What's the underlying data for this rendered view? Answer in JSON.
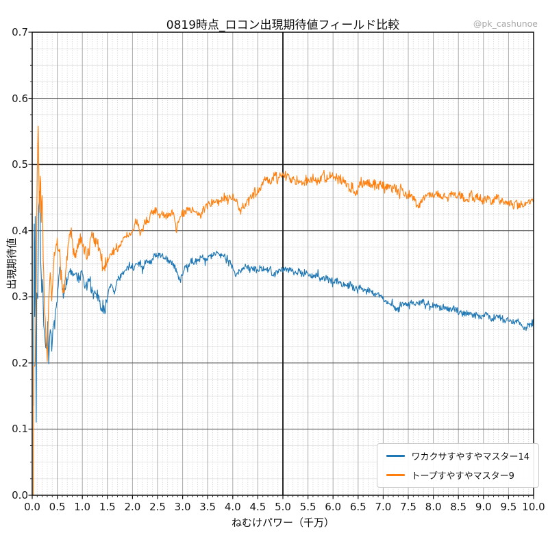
{
  "watermark": "@pk_cashunoe",
  "chart_data": {
    "type": "line",
    "title": "0819時点_ロコン出現期待値フィールド比較",
    "xlabel": "ねむけパワー（千万）",
    "ylabel": "出現期待値",
    "xlim": [
      0,
      10
    ],
    "ylim": [
      0,
      0.7
    ],
    "x_ticks": {
      "values": [
        0,
        0.5,
        1,
        1.5,
        2,
        2.5,
        3,
        3.5,
        4,
        4.5,
        5,
        5.5,
        6,
        6.5,
        7,
        7.5,
        8,
        8.5,
        9,
        9.5,
        10
      ],
      "labels": [
        "0.0",
        "0.5",
        "1.0",
        "1.5",
        "2.0",
        "2.5",
        "3.0",
        "3.5",
        "4.0",
        "4.5",
        "5.0",
        "5.5",
        "6.0",
        "6.5",
        "7.0",
        "7.5",
        "8.0",
        "8.5",
        "9.0",
        "9.5",
        "10.0"
      ]
    },
    "y_ticks": {
      "values": [
        0,
        0.1,
        0.2,
        0.3,
        0.4,
        0.5,
        0.6,
        0.7
      ],
      "labels": [
        "0.0",
        "0.1",
        "0.2",
        "0.3",
        "0.4",
        "0.5",
        "0.6",
        "0.7"
      ]
    },
    "grid": {
      "on": true,
      "x_major": 0.5,
      "x_minor": 0.1,
      "y_major": 0.1,
      "y_minor": 0.025
    },
    "reference_lines": [
      {
        "axis": "y",
        "value": 0.5
      },
      {
        "axis": "x",
        "value": 5.0
      }
    ],
    "legend": {
      "position": "lower right",
      "entries": [
        {
          "label": "ワカクサすやすやマスター14",
          "color": "#1f77b4"
        },
        {
          "label": "トープすやすやマスター9",
          "color": "#ff7f0e"
        }
      ]
    },
    "series": [
      {
        "name": "ワカクサすやすやマスター14",
        "color": "#1f77b4",
        "noise": 0.0055,
        "seed": 7,
        "points": [
          [
            0.03,
            0.135
          ],
          [
            0.04,
            0.41
          ],
          [
            0.05,
            0.27
          ],
          [
            0.06,
            0.43
          ],
          [
            0.08,
            0.12
          ],
          [
            0.09,
            0.31
          ],
          [
            0.11,
            0.3
          ],
          [
            0.13,
            0.44
          ],
          [
            0.15,
            0.455
          ],
          [
            0.17,
            0.35
          ],
          [
            0.19,
            0.3
          ],
          [
            0.21,
            0.33
          ],
          [
            0.23,
            0.26
          ],
          [
            0.26,
            0.235
          ],
          [
            0.29,
            0.225
          ],
          [
            0.31,
            0.26
          ],
          [
            0.33,
            0.2
          ],
          [
            0.36,
            0.245
          ],
          [
            0.39,
            0.22
          ],
          [
            0.42,
            0.25
          ],
          [
            0.45,
            0.27
          ],
          [
            0.48,
            0.285
          ],
          [
            0.52,
            0.31
          ],
          [
            0.55,
            0.345
          ],
          [
            0.58,
            0.325
          ],
          [
            0.62,
            0.3
          ],
          [
            0.66,
            0.318
          ],
          [
            0.7,
            0.33
          ],
          [
            0.75,
            0.34
          ],
          [
            0.8,
            0.332
          ],
          [
            0.85,
            0.338
          ],
          [
            0.9,
            0.325
          ],
          [
            0.95,
            0.332
          ],
          [
            1.0,
            0.337
          ],
          [
            1.05,
            0.318
          ],
          [
            1.1,
            0.315
          ],
          [
            1.15,
            0.322
          ],
          [
            1.2,
            0.312
          ],
          [
            1.25,
            0.302
          ],
          [
            1.3,
            0.297
          ],
          [
            1.38,
            0.288
          ],
          [
            1.45,
            0.282
          ],
          [
            1.52,
            0.305
          ],
          [
            1.58,
            0.318
          ],
          [
            1.64,
            0.303
          ],
          [
            1.72,
            0.33
          ],
          [
            1.8,
            0.338
          ],
          [
            1.9,
            0.342
          ],
          [
            2.0,
            0.345
          ],
          [
            2.1,
            0.352
          ],
          [
            2.2,
            0.347
          ],
          [
            2.3,
            0.352
          ],
          [
            2.4,
            0.358
          ],
          [
            2.5,
            0.36
          ],
          [
            2.6,
            0.365
          ],
          [
            2.7,
            0.358
          ],
          [
            2.8,
            0.352
          ],
          [
            2.9,
            0.332
          ],
          [
            2.95,
            0.322
          ],
          [
            3.05,
            0.345
          ],
          [
            3.15,
            0.35
          ],
          [
            3.25,
            0.355
          ],
          [
            3.35,
            0.36
          ],
          [
            3.45,
            0.358
          ],
          [
            3.55,
            0.362
          ],
          [
            3.65,
            0.365
          ],
          [
            3.75,
            0.362
          ],
          [
            3.85,
            0.358
          ],
          [
            3.95,
            0.348
          ],
          [
            4.05,
            0.333
          ],
          [
            4.15,
            0.34
          ],
          [
            4.25,
            0.345
          ],
          [
            4.4,
            0.34
          ],
          [
            4.55,
            0.342
          ],
          [
            4.7,
            0.34
          ],
          [
            4.85,
            0.337
          ],
          [
            5.0,
            0.34
          ],
          [
            5.15,
            0.34
          ],
          [
            5.3,
            0.337
          ],
          [
            5.45,
            0.336
          ],
          [
            5.6,
            0.333
          ],
          [
            5.75,
            0.33
          ],
          [
            5.9,
            0.325
          ],
          [
            6.05,
            0.322
          ],
          [
            6.2,
            0.318
          ],
          [
            6.35,
            0.316
          ],
          [
            6.5,
            0.314
          ],
          [
            6.65,
            0.31
          ],
          [
            6.8,
            0.304
          ],
          [
            6.95,
            0.3
          ],
          [
            7.1,
            0.29
          ],
          [
            7.25,
            0.282
          ],
          [
            7.4,
            0.287
          ],
          [
            7.55,
            0.292
          ],
          [
            7.7,
            0.29
          ],
          [
            7.85,
            0.289
          ],
          [
            8.0,
            0.288
          ],
          [
            8.15,
            0.286
          ],
          [
            8.3,
            0.283
          ],
          [
            8.45,
            0.28
          ],
          [
            8.6,
            0.278
          ],
          [
            8.75,
            0.275
          ],
          [
            8.9,
            0.272
          ],
          [
            9.05,
            0.27
          ],
          [
            9.2,
            0.268
          ],
          [
            9.35,
            0.266
          ],
          [
            9.5,
            0.264
          ],
          [
            9.65,
            0.262
          ],
          [
            9.8,
            0.256
          ],
          [
            9.9,
            0.253
          ],
          [
            10.0,
            0.26
          ]
        ]
      },
      {
        "name": "トープすやすやマスター9",
        "color": "#ff7f0e",
        "noise": 0.007,
        "seed": 13,
        "points": [
          [
            0.02,
            0.0
          ],
          [
            0.03,
            0.195
          ],
          [
            0.06,
            0.195
          ],
          [
            0.08,
            0.33
          ],
          [
            0.1,
            0.5
          ],
          [
            0.12,
            0.565
          ],
          [
            0.135,
            0.47
          ],
          [
            0.15,
            0.44
          ],
          [
            0.165,
            0.5
          ],
          [
            0.18,
            0.42
          ],
          [
            0.2,
            0.46
          ],
          [
            0.22,
            0.36
          ],
          [
            0.24,
            0.3
          ],
          [
            0.27,
            0.245
          ],
          [
            0.3,
            0.21
          ],
          [
            0.33,
            0.285
          ],
          [
            0.36,
            0.33
          ],
          [
            0.39,
            0.3
          ],
          [
            0.42,
            0.345
          ],
          [
            0.46,
            0.365
          ],
          [
            0.5,
            0.38
          ],
          [
            0.54,
            0.358
          ],
          [
            0.58,
            0.33
          ],
          [
            0.62,
            0.292
          ],
          [
            0.66,
            0.32
          ],
          [
            0.7,
            0.358
          ],
          [
            0.74,
            0.383
          ],
          [
            0.78,
            0.398
          ],
          [
            0.82,
            0.375
          ],
          [
            0.86,
            0.362
          ],
          [
            0.9,
            0.375
          ],
          [
            0.95,
            0.38
          ],
          [
            1.0,
            0.385
          ],
          [
            1.05,
            0.372
          ],
          [
            1.1,
            0.365
          ],
          [
            1.15,
            0.375
          ],
          [
            1.2,
            0.39
          ],
          [
            1.25,
            0.385
          ],
          [
            1.3,
            0.375
          ],
          [
            1.36,
            0.36
          ],
          [
            1.42,
            0.35
          ],
          [
            1.48,
            0.347
          ],
          [
            1.54,
            0.362
          ],
          [
            1.6,
            0.368
          ],
          [
            1.7,
            0.374
          ],
          [
            1.8,
            0.382
          ],
          [
            1.9,
            0.39
          ],
          [
            2.0,
            0.4
          ],
          [
            2.07,
            0.418
          ],
          [
            2.15,
            0.397
          ],
          [
            2.25,
            0.41
          ],
          [
            2.35,
            0.42
          ],
          [
            2.45,
            0.428
          ],
          [
            2.55,
            0.422
          ],
          [
            2.65,
            0.425
          ],
          [
            2.75,
            0.428
          ],
          [
            2.83,
            0.42
          ],
          [
            2.88,
            0.403
          ],
          [
            2.95,
            0.42
          ],
          [
            3.05,
            0.43
          ],
          [
            3.15,
            0.432
          ],
          [
            3.25,
            0.428
          ],
          [
            3.35,
            0.425
          ],
          [
            3.45,
            0.435
          ],
          [
            3.55,
            0.44
          ],
          [
            3.65,
            0.445
          ],
          [
            3.75,
            0.443
          ],
          [
            3.85,
            0.448
          ],
          [
            3.95,
            0.452
          ],
          [
            4.05,
            0.445
          ],
          [
            4.15,
            0.432
          ],
          [
            4.25,
            0.438
          ],
          [
            4.35,
            0.45
          ],
          [
            4.45,
            0.458
          ],
          [
            4.55,
            0.468
          ],
          [
            4.65,
            0.478
          ],
          [
            4.75,
            0.478
          ],
          [
            4.85,
            0.48
          ],
          [
            4.95,
            0.482
          ],
          [
            5.05,
            0.483
          ],
          [
            5.15,
            0.48
          ],
          [
            5.25,
            0.478
          ],
          [
            5.35,
            0.475
          ],
          [
            5.45,
            0.477
          ],
          [
            5.55,
            0.478
          ],
          [
            5.65,
            0.475
          ],
          [
            5.75,
            0.478
          ],
          [
            5.85,
            0.482
          ],
          [
            5.95,
            0.484
          ],
          [
            6.05,
            0.482
          ],
          [
            6.15,
            0.478
          ],
          [
            6.25,
            0.474
          ],
          [
            6.35,
            0.462
          ],
          [
            6.42,
            0.455
          ],
          [
            6.5,
            0.465
          ],
          [
            6.6,
            0.47
          ],
          [
            6.7,
            0.471
          ],
          [
            6.8,
            0.469
          ],
          [
            6.9,
            0.467
          ],
          [
            7.0,
            0.469
          ],
          [
            7.1,
            0.467
          ],
          [
            7.2,
            0.465
          ],
          [
            7.3,
            0.462
          ],
          [
            7.4,
            0.46
          ],
          [
            7.5,
            0.456
          ],
          [
            7.6,
            0.448
          ],
          [
            7.7,
            0.437
          ],
          [
            7.8,
            0.448
          ],
          [
            7.9,
            0.453
          ],
          [
            8.0,
            0.454
          ],
          [
            8.15,
            0.452
          ],
          [
            8.3,
            0.45
          ],
          [
            8.45,
            0.451
          ],
          [
            8.6,
            0.452
          ],
          [
            8.75,
            0.45
          ],
          [
            8.9,
            0.448
          ],
          [
            9.05,
            0.447
          ],
          [
            9.2,
            0.447
          ],
          [
            9.35,
            0.445
          ],
          [
            9.5,
            0.443
          ],
          [
            9.65,
            0.441
          ],
          [
            9.8,
            0.44
          ],
          [
            9.9,
            0.441
          ],
          [
            10.0,
            0.447
          ]
        ]
      }
    ]
  }
}
